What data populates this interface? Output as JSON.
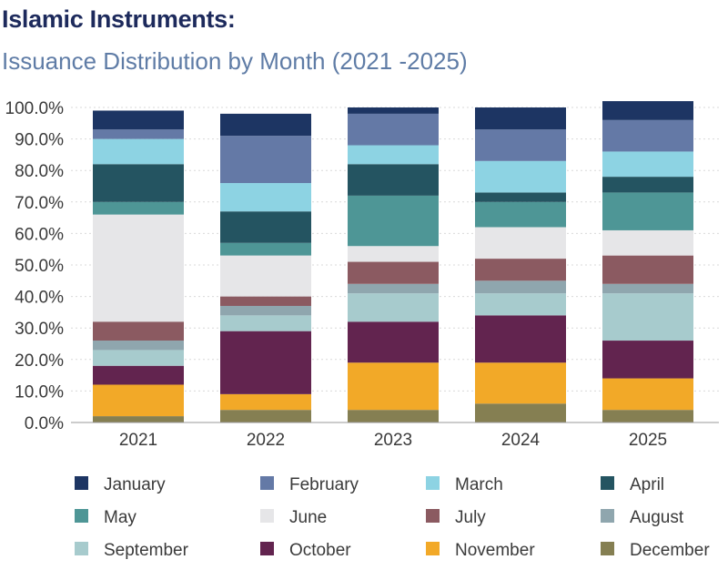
{
  "header": {
    "title": "Islamic Instruments:",
    "subtitle": "Issuance Distribution by Month (2021 -2025)"
  },
  "chart_data": {
    "type": "bar",
    "stacked": true,
    "title": "Islamic Instruments:",
    "subtitle": "Issuance Distribution by Month (2021 -2025)",
    "xlabel": "",
    "ylabel": "",
    "categories": [
      "2021",
      "2022",
      "2023",
      "2024",
      "2025"
    ],
    "ylim": [
      0,
      100
    ],
    "yticks": [
      "0.0%",
      "10.0%",
      "20.0%",
      "30.0%",
      "40.0%",
      "50.0%",
      "60.0%",
      "70.0%",
      "80.0%",
      "90.0%",
      "100.0%"
    ],
    "grid": true,
    "legend_position": "bottom",
    "series": [
      {
        "name": "December",
        "color": "#857f52",
        "values": [
          2,
          4,
          4,
          6,
          4
        ]
      },
      {
        "name": "November",
        "color": "#f2a928",
        "values": [
          10,
          5,
          15,
          13,
          10
        ]
      },
      {
        "name": "October",
        "color": "#62244f",
        "values": [
          6,
          20,
          13,
          15,
          12
        ]
      },
      {
        "name": "September",
        "color": "#a7cbcd",
        "values": [
          5,
          5,
          9,
          7,
          15
        ]
      },
      {
        "name": "August",
        "color": "#8fa6ae",
        "values": [
          3,
          3,
          3,
          4,
          3
        ]
      },
      {
        "name": "July",
        "color": "#8b5a61",
        "values": [
          6,
          3,
          7,
          7,
          9
        ]
      },
      {
        "name": "June",
        "color": "#e6e6e8",
        "values": [
          34,
          13,
          5,
          10,
          8
        ]
      },
      {
        "name": "May",
        "color": "#4e9696",
        "values": [
          4,
          4,
          16,
          8,
          12
        ]
      },
      {
        "name": "April",
        "color": "#245461",
        "values": [
          12,
          10,
          10,
          3,
          5
        ]
      },
      {
        "name": "March",
        "color": "#8dd3e3",
        "values": [
          8,
          9,
          6,
          10,
          8
        ]
      },
      {
        "name": "February",
        "color": "#6479a6",
        "values": [
          3,
          15,
          10,
          10,
          10
        ]
      },
      {
        "name": "January",
        "color": "#1d3563",
        "values": [
          6,
          7,
          2,
          7,
          6
        ]
      }
    ],
    "legend": [
      "January",
      "February",
      "March",
      "April",
      "May",
      "June",
      "July",
      "August",
      "September",
      "October",
      "November",
      "December"
    ]
  }
}
